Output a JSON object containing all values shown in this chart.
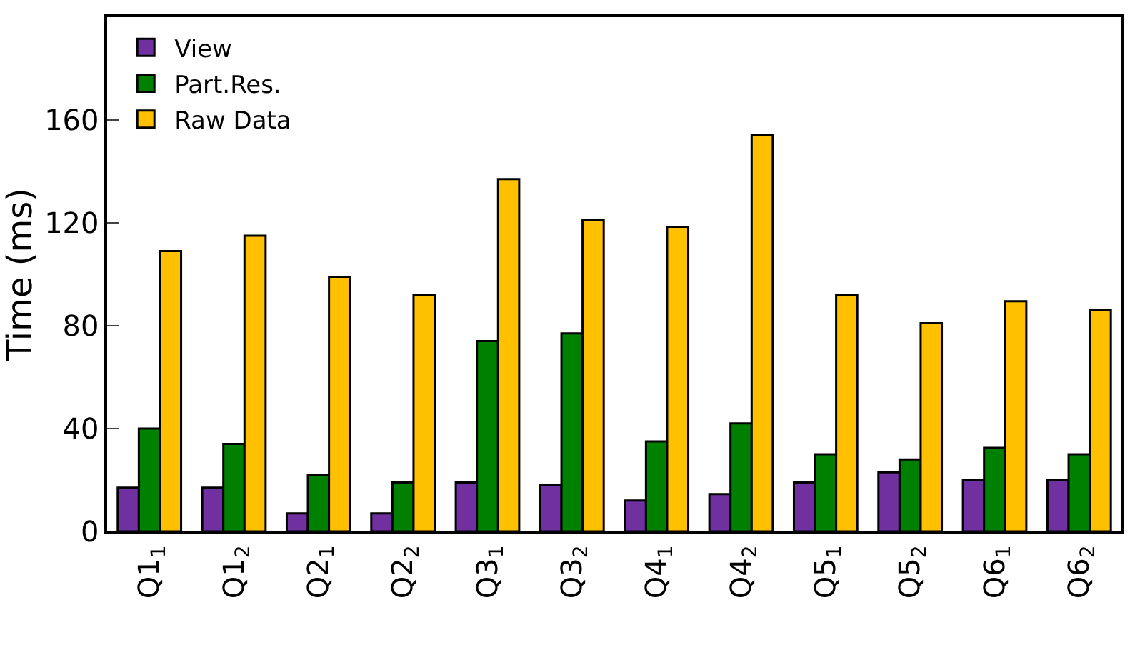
{
  "chart_data": {
    "type": "bar",
    "ylabel": "Time (ms)",
    "categories": [
      "Q1$_{1}$",
      "Q1$_{2}$",
      "Q2$_{1}$",
      "Q2$_{2}$",
      "Q3$_{1}$",
      "Q3$_{2}$",
      "Q4$_{1}$",
      "Q4$_{2}$",
      "Q5$_{1}$",
      "Q5$_{2}$",
      "Q6$_{1}$",
      "Q6$_{2}$"
    ],
    "series": [
      {
        "name": "View",
        "color": "#7030a0",
        "values": [
          17,
          17,
          7,
          7,
          19,
          18,
          12,
          14.5,
          19,
          23,
          20,
          20
        ]
      },
      {
        "name": "Part.Res.",
        "color": "#008000",
        "values": [
          40,
          34,
          22,
          19,
          74,
          77,
          35,
          42,
          30,
          28,
          32.5,
          30
        ]
      },
      {
        "name": "Raw Data",
        "color": "#ffc000",
        "values": [
          109,
          115,
          99,
          92,
          137,
          121,
          118.5,
          154,
          92,
          81,
          89.5,
          86
        ]
      }
    ],
    "ylim": [
      0,
      200
    ],
    "yticks": [
      0,
      40,
      80,
      120,
      160
    ],
    "legend": "top left"
  }
}
